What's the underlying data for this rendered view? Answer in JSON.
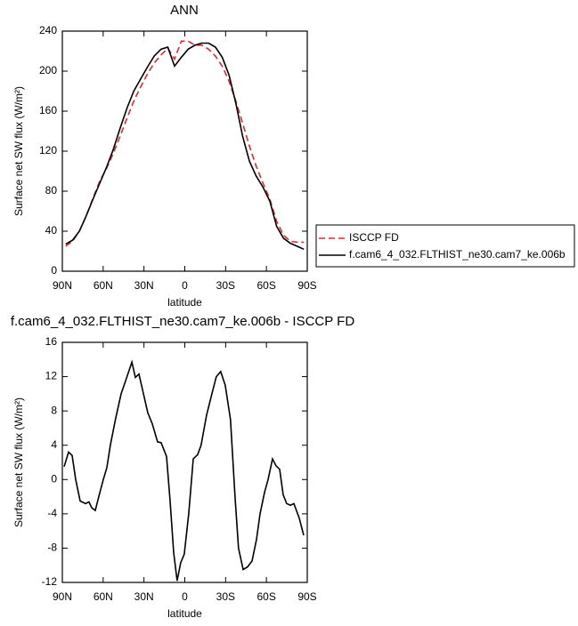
{
  "chart_data": [
    {
      "type": "line",
      "title": "ANN",
      "xlabel": "latitude",
      "ylabel": "Surface net SW flux (W/m²)",
      "x": [
        87.5,
        82.5,
        77.5,
        72.5,
        67.5,
        62.5,
        57.5,
        52.5,
        47.5,
        42.5,
        37.5,
        32.5,
        27.5,
        22.5,
        17.5,
        12.5,
        7.5,
        2.5,
        -2.5,
        -7.5,
        -12.5,
        -17.5,
        -22.5,
        -27.5,
        -32.5,
        -37.5,
        -42.5,
        -47.5,
        -52.5,
        -57.5,
        -62.5,
        -67.5,
        -72.5,
        -77.5,
        -82.5,
        -87.5
      ],
      "series": [
        {
          "name": "ISCCP FD",
          "color": "#e8262b",
          "dashed": true,
          "values": [
            25,
            30,
            40,
            55,
            73,
            90,
            103,
            118,
            135,
            153,
            170,
            184,
            197,
            208,
            216,
            223,
            212,
            230,
            230,
            226,
            226,
            222,
            215,
            205,
            190,
            170,
            148,
            125,
            105,
            88,
            72,
            50,
            36,
            30,
            29,
            29
          ]
        },
        {
          "name": "f.cam6_4_032.FLTHIST_ne30.cam7_ke.006b",
          "color": "#000000",
          "dashed": false,
          "values": [
            27,
            31,
            40,
            55,
            72,
            88,
            104,
            122,
            143,
            163,
            180,
            192,
            204,
            215,
            222,
            224,
            205,
            214,
            222,
            226,
            228,
            228,
            224,
            214,
            196,
            168,
            135,
            110,
            95,
            84,
            70,
            45,
            33,
            28,
            25,
            22
          ]
        }
      ],
      "xlim": [
        90,
        -90
      ],
      "xticks": [
        {
          "value": 90,
          "label": "90N"
        },
        {
          "value": 60,
          "label": "60N"
        },
        {
          "value": 30,
          "label": "30N"
        },
        0,
        {
          "value": -30,
          "label": "30S"
        },
        {
          "value": -60,
          "label": "60S"
        },
        {
          "value": -90,
          "label": "90S"
        }
      ],
      "ylim": [
        0,
        240
      ],
      "yticks": [
        0,
        40,
        80,
        120,
        160,
        200,
        240
      ]
    },
    {
      "type": "line",
      "title": "f.cam6_4_032.FLTHIST_ne30.cam7_ke.006b - ISCCP FD",
      "xlabel": "latitude",
      "ylabel": "Surface net SW flux (W/m²)",
      "x": [
        88.7,
        85.4,
        82.8,
        80.2,
        76.9,
        73.0,
        70.4,
        68.4,
        65.8,
        63.2,
        59.9,
        57.3,
        54.7,
        50.7,
        46.8,
        43.5,
        38.9,
        36.3,
        33.7,
        31.1,
        27.2,
        23.9,
        20.0,
        17.4,
        13.4,
        10.8,
        8.2,
        5.6,
        3.0,
        0.4,
        -2.9,
        -6.2,
        -9.4,
        -12.0,
        -16.0,
        -19.9,
        -23.2,
        -26.4,
        -29.7,
        -33.6,
        -36.9,
        -39.5,
        -42.9,
        -46.1,
        -49.4,
        -52.7,
        -55.3,
        -58.6,
        -61.2,
        -64.5,
        -67.1,
        -69.7,
        -72.3,
        -74.9,
        -77.6,
        -80.2,
        -84.1,
        -87.4
      ],
      "values": [
        1.5,
        3.2,
        2.8,
        0,
        -2.5,
        -2.8,
        -2.6,
        -3.3,
        -3.6,
        -2,
        0,
        1.4,
        4,
        7.2,
        10,
        11.5,
        13.7,
        11.9,
        12.3,
        10.5,
        7.8,
        6.5,
        4.4,
        4.3,
        2.7,
        -2.5,
        -8.5,
        -11.8,
        -9.7,
        -8.7,
        -4,
        2.4,
        2.9,
        4,
        7.5,
        10,
        12,
        12.6,
        11,
        7,
        -2,
        -8,
        -10.5,
        -10.2,
        -9.5,
        -7,
        -4,
        -1.5,
        0,
        2.4,
        1.6,
        1.2,
        -1.8,
        -2.8,
        -3,
        -2.8,
        -4.5,
        -6.5
      ],
      "color": "#000000",
      "xlim": [
        90,
        -90
      ],
      "xticks": [
        {
          "value": 90,
          "label": "90N"
        },
        {
          "value": 60,
          "label": "60N"
        },
        {
          "value": 30,
          "label": "30N"
        },
        0,
        {
          "value": -30,
          "label": "30S"
        },
        {
          "value": -60,
          "label": "60S"
        },
        {
          "value": -90,
          "label": "90S"
        }
      ],
      "ylim": [
        -12,
        16
      ],
      "yticks": [
        -12,
        -8,
        -4,
        0,
        4,
        8,
        12,
        16
      ]
    }
  ]
}
